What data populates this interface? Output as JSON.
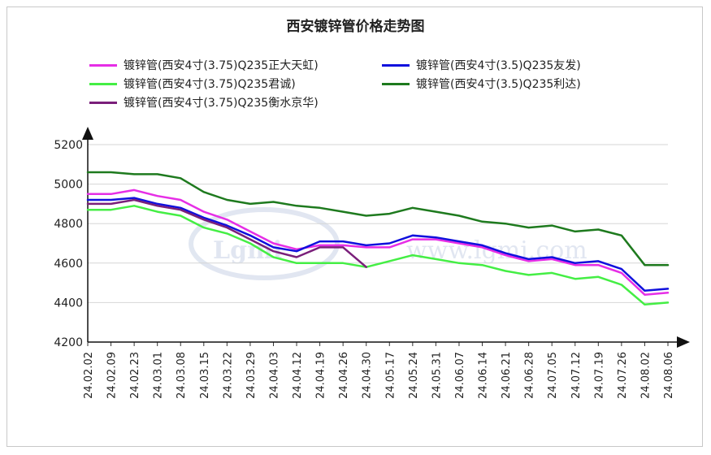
{
  "chart_data": {
    "type": "line",
    "title": "西安镀锌管价格走势图",
    "xlabel": "",
    "ylabel": "",
    "ylim": [
      4200,
      5200
    ],
    "yticks": [
      4200,
      4400,
      4600,
      4800,
      5000,
      5200
    ],
    "grid": true,
    "legend_position": "top",
    "categories": [
      "24.02.02",
      "24.02.09",
      "24.02.23",
      "24.03.01",
      "24.03.08",
      "24.03.15",
      "24.03.22",
      "24.03.29",
      "24.04.03",
      "24.04.12",
      "24.04.19",
      "24.04.26",
      "24.04.30",
      "24.05.17",
      "24.05.24",
      "24.05.31",
      "24.06.07",
      "24.06.14",
      "24.06.21",
      "24.06.28",
      "24.07.05",
      "24.07.12",
      "24.07.19",
      "24.07.26",
      "24.08.02",
      "24.08.06"
    ],
    "series": [
      {
        "name": "镀锌管(西安4寸(3.75)Q235正大天虹)",
        "color": "#e62ee6",
        "values": [
          4950,
          4950,
          4970,
          4940,
          4920,
          4860,
          4820,
          4760,
          4700,
          4670,
          4690,
          4690,
          4680,
          4680,
          4720,
          4720,
          4700,
          4680,
          4640,
          4610,
          4620,
          4590,
          4590,
          4550,
          4440,
          4450
        ]
      },
      {
        "name": "镀锌管(西安4寸(3.5)Q235友发)",
        "color": "#1010dd",
        "values": [
          4920,
          4920,
          4930,
          4900,
          4880,
          4830,
          4790,
          4740,
          4680,
          4660,
          4710,
          4710,
          4690,
          4700,
          4740,
          4730,
          4710,
          4690,
          4650,
          4620,
          4630,
          4600,
          4610,
          4570,
          4460,
          4470
        ]
      },
      {
        "name": "镀锌管(西安4寸(3.75)Q235君诚)",
        "color": "#44ee44",
        "values": [
          4870,
          4870,
          4890,
          4860,
          4840,
          4780,
          4750,
          4700,
          4630,
          4600,
          4600,
          4600,
          4580,
          4610,
          4640,
          4620,
          4600,
          4590,
          4560,
          4540,
          4550,
          4520,
          4530,
          4490,
          4390,
          4400
        ]
      },
      {
        "name": "镀锌管(西安4寸(3.5)Q235利达)",
        "color": "#1e7a1e",
        "values": [
          5060,
          5060,
          5050,
          5050,
          5030,
          4960,
          4920,
          4900,
          4910,
          4890,
          4880,
          4860,
          4840,
          4850,
          4880,
          4860,
          4840,
          4810,
          4800,
          4780,
          4790,
          4760,
          4770,
          4740,
          4590,
          4590
        ]
      },
      {
        "name": "镀锌管(西安4寸(3.75)Q235衡水京华)",
        "color": "#7a1f7a",
        "values": [
          4900,
          4900,
          4920,
          4890,
          4870,
          4820,
          4780,
          4720,
          4660,
          4630,
          4680,
          4680,
          4580,
          null,
          null,
          null,
          null,
          null,
          null,
          null,
          null,
          null,
          null,
          null,
          null,
          null
        ]
      }
    ]
  },
  "watermark": {
    "logo_text": "Lgmi",
    "url_text": "www.lgmi.com"
  }
}
